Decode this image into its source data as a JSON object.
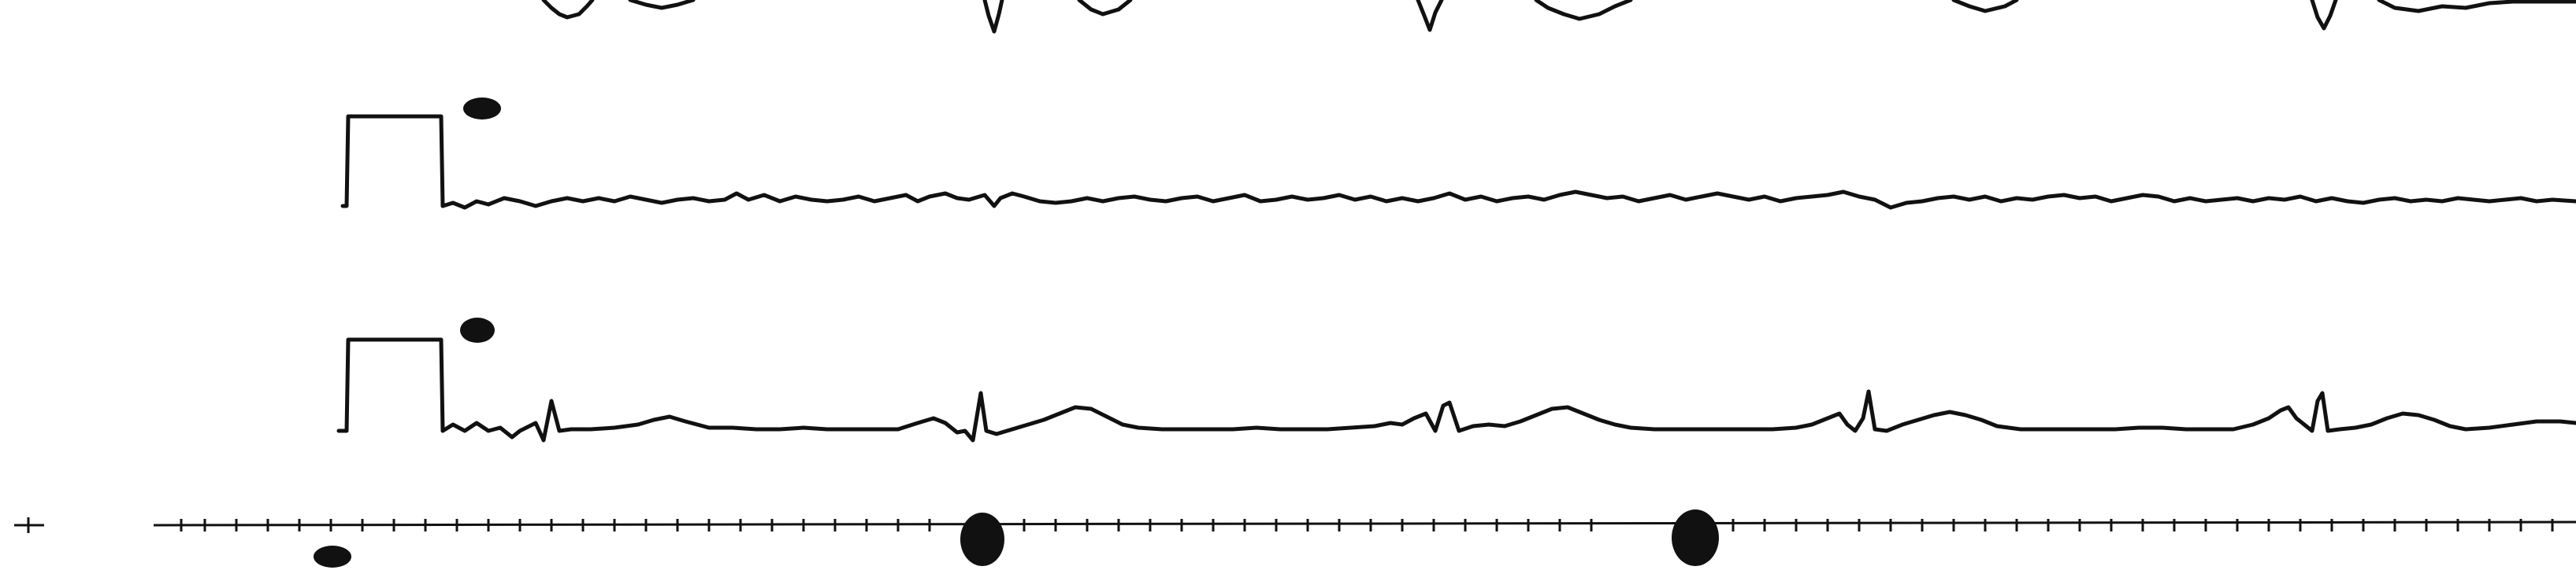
{
  "document": {
    "ink_color": "#111111",
    "background_color": "#ffffff"
  },
  "strip": {
    "lead_labels": {
      "top": "",
      "middle": "",
      "bottom": ""
    }
  }
}
